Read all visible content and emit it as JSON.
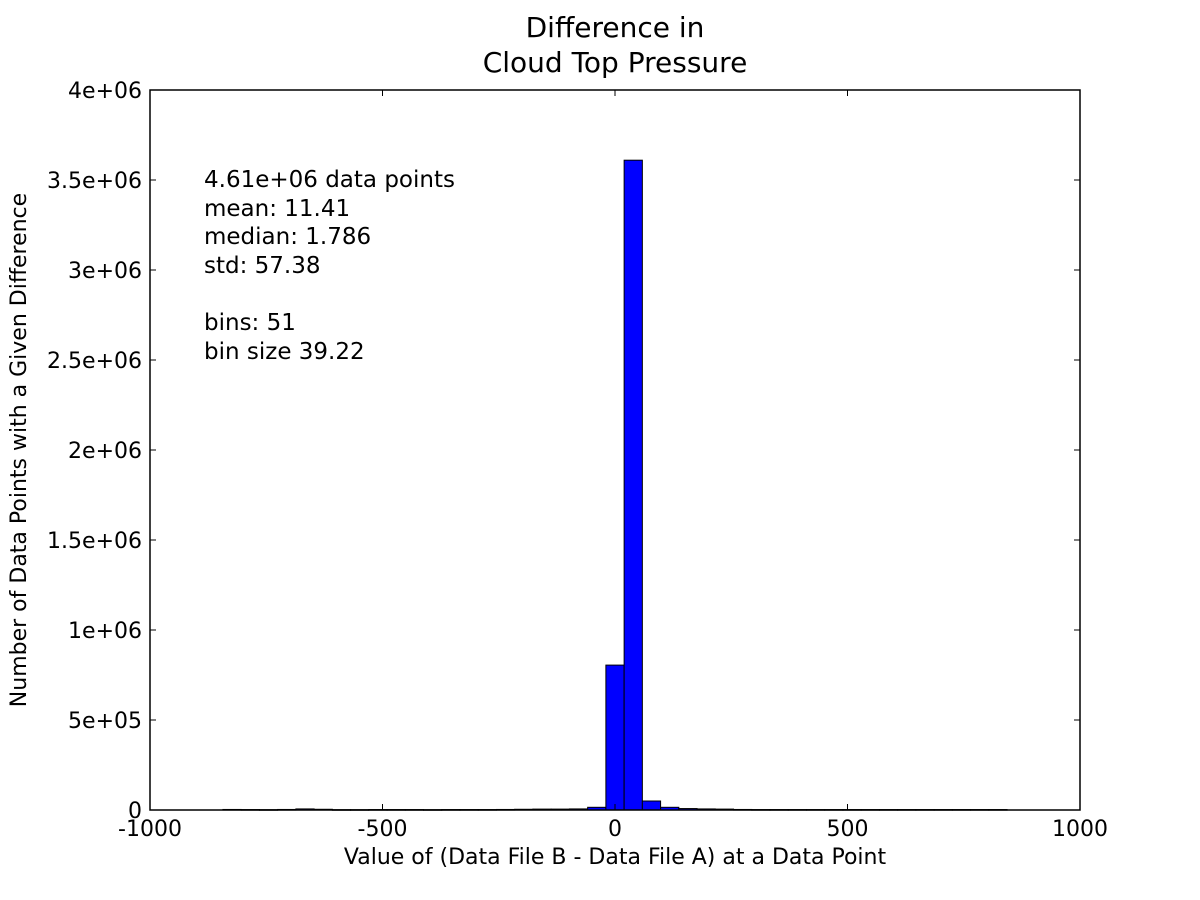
{
  "chart_data": {
    "type": "bar",
    "title": [
      "Difference in",
      "Cloud Top Pressure"
    ],
    "xlabel": "Value of (Data File B - Data File A) at a Data Point",
    "ylabel": "Number of Data Points with a Given Difference",
    "xlim": [
      -1000,
      1000
    ],
    "ylim": [
      0,
      4000000
    ],
    "x_ticks": [
      -1000,
      -500,
      0,
      500,
      1000
    ],
    "x_tick_labels": [
      "-1000",
      "-500",
      "0",
      "500",
      "1000"
    ],
    "y_ticks": [
      0,
      500000,
      1000000,
      1500000,
      2000000,
      2500000,
      3000000,
      3500000,
      4000000
    ],
    "y_tick_labels": [
      "0",
      "5e+05",
      "1e+06",
      "1.5e+06",
      "2e+06",
      "2.5e+06",
      "3e+06",
      "3.5e+06",
      "4e+06"
    ],
    "bar_color": "#0000ff",
    "bin_width": 39.22,
    "bins": [
      {
        "x0": -1000.0,
        "value": 0
      },
      {
        "x0": -960.78,
        "value": 0
      },
      {
        "x0": -921.57,
        "value": 0
      },
      {
        "x0": -882.35,
        "value": 0
      },
      {
        "x0": -843.14,
        "value": 3000
      },
      {
        "x0": -803.92,
        "value": 2500
      },
      {
        "x0": -764.71,
        "value": 2000
      },
      {
        "x0": -725.49,
        "value": 3000
      },
      {
        "x0": -686.27,
        "value": 6000
      },
      {
        "x0": -647.06,
        "value": 4000
      },
      {
        "x0": -607.84,
        "value": 2000
      },
      {
        "x0": -568.63,
        "value": 2000
      },
      {
        "x0": -529.41,
        "value": 2500
      },
      {
        "x0": -490.2,
        "value": 2500
      },
      {
        "x0": -450.98,
        "value": 2500
      },
      {
        "x0": -411.76,
        "value": 2000
      },
      {
        "x0": -372.55,
        "value": 2500
      },
      {
        "x0": -333.33,
        "value": 2500
      },
      {
        "x0": -294.12,
        "value": 2500
      },
      {
        "x0": -254.9,
        "value": 3000
      },
      {
        "x0": -215.69,
        "value": 4000
      },
      {
        "x0": -176.47,
        "value": 5000
      },
      {
        "x0": -137.25,
        "value": 5000
      },
      {
        "x0": -98.04,
        "value": 6000
      },
      {
        "x0": -58.82,
        "value": 15000
      },
      {
        "x0": -19.61,
        "value": 805000
      },
      {
        "x0": 19.61,
        "value": 3610000
      },
      {
        "x0": 58.82,
        "value": 50000
      },
      {
        "x0": 98.04,
        "value": 15000
      },
      {
        "x0": 137.25,
        "value": 8000
      },
      {
        "x0": 176.47,
        "value": 6000
      },
      {
        "x0": 215.69,
        "value": 5000
      },
      {
        "x0": 254.9,
        "value": 3000
      },
      {
        "x0": 294.12,
        "value": 2500
      },
      {
        "x0": 333.33,
        "value": 2500
      },
      {
        "x0": 372.55,
        "value": 2500
      },
      {
        "x0": 411.76,
        "value": 2500
      },
      {
        "x0": 450.98,
        "value": 2500
      },
      {
        "x0": 490.2,
        "value": 2500
      },
      {
        "x0": 529.41,
        "value": 2500
      },
      {
        "x0": 568.63,
        "value": 2500
      },
      {
        "x0": 607.84,
        "value": 2500
      },
      {
        "x0": 647.06,
        "value": 2500
      },
      {
        "x0": 686.27,
        "value": 2500
      },
      {
        "x0": 725.49,
        "value": 2500
      },
      {
        "x0": 764.71,
        "value": 2500
      },
      {
        "x0": 803.92,
        "value": 2500
      },
      {
        "x0": 843.14,
        "value": 0
      },
      {
        "x0": 882.35,
        "value": 0
      },
      {
        "x0": 921.57,
        "value": 0
      },
      {
        "x0": 960.78,
        "value": 0
      }
    ],
    "annotations": [
      "4.61e+06 data points",
      "mean: 11.41",
      "median: 1.786",
      "std: 57.38",
      "",
      "bins: 51",
      "bin size 39.22"
    ]
  }
}
